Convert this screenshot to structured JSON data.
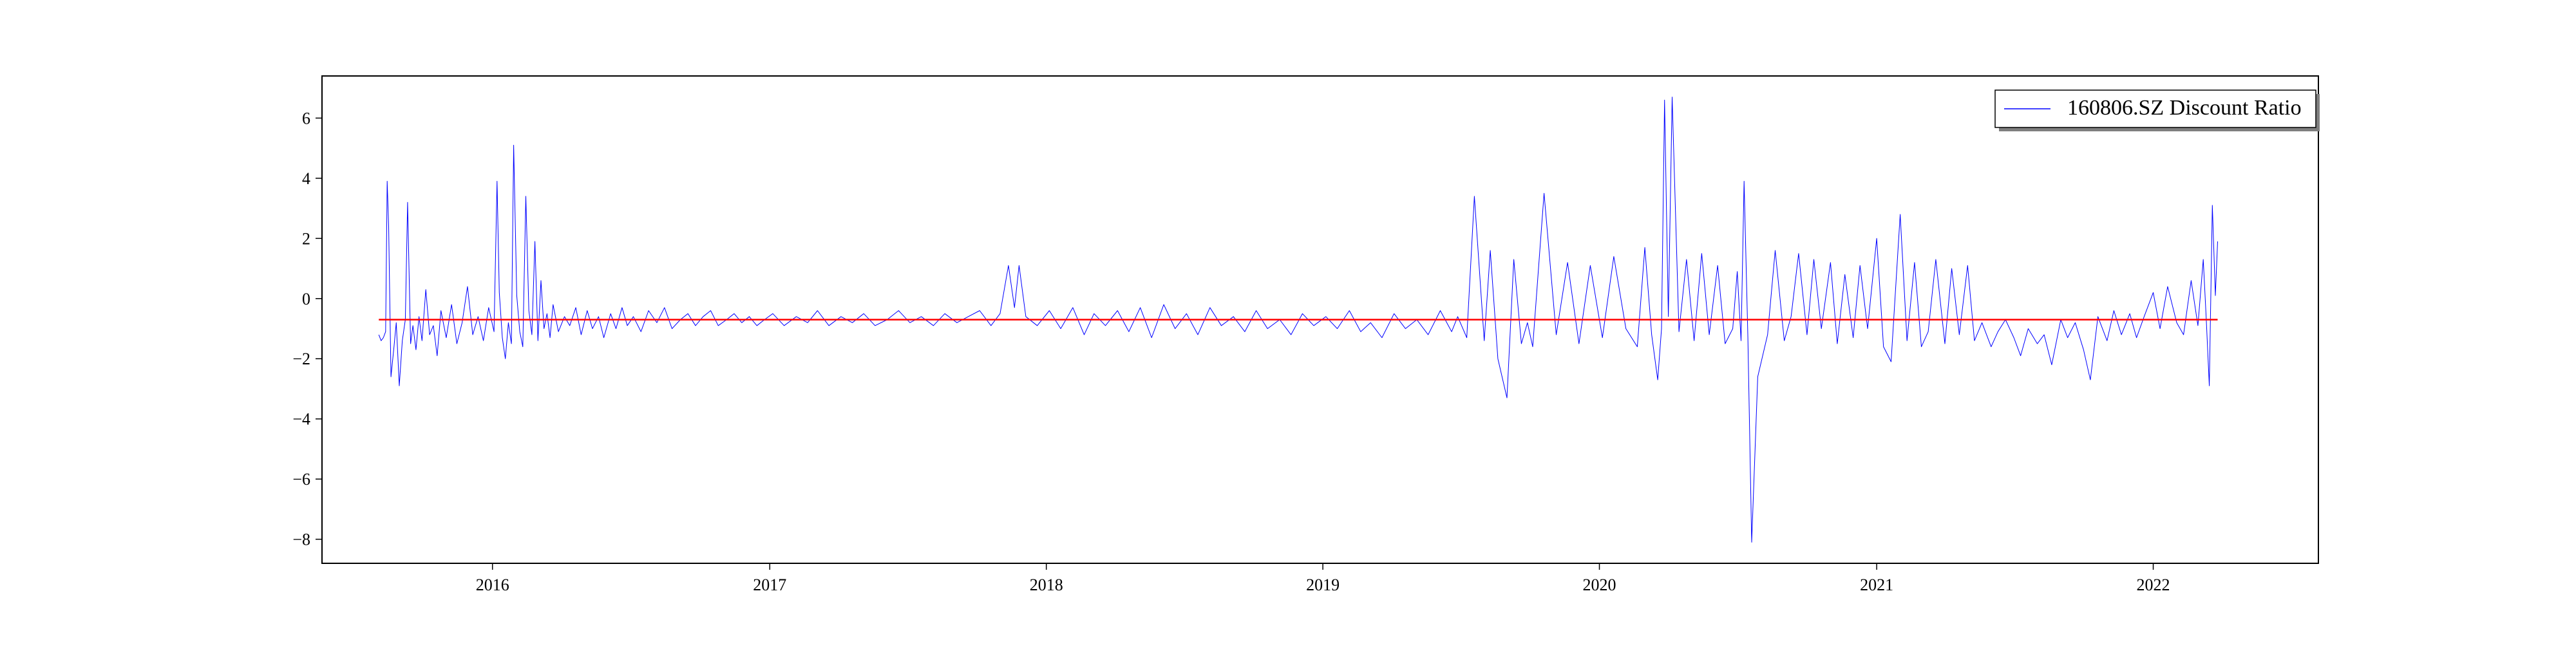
{
  "chart_data": {
    "type": "line",
    "title": "",
    "xlabel": "",
    "ylabel": "",
    "xlim": [
      "2015-05-21",
      "2022-08-07"
    ],
    "ylim": [
      -8.8,
      7.4
    ],
    "grid": false,
    "legend": {
      "location": "upper right",
      "entries": [
        "160806.SZ Discount Ratio"
      ]
    },
    "x_ticks": [
      {
        "value": "2016-01-01",
        "label": "2016"
      },
      {
        "value": "2017-01-01",
        "label": "2017"
      },
      {
        "value": "2018-01-01",
        "label": "2018"
      },
      {
        "value": "2019-01-01",
        "label": "2019"
      },
      {
        "value": "2020-01-01",
        "label": "2020"
      },
      {
        "value": "2021-01-01",
        "label": "2021"
      },
      {
        "value": "2022-01-01",
        "label": "2022"
      }
    ],
    "y_ticks": [
      {
        "value": 6,
        "label": "6"
      },
      {
        "value": 4,
        "label": "4"
      },
      {
        "value": 2,
        "label": "2"
      },
      {
        "value": 0,
        "label": "0"
      },
      {
        "value": -2,
        "label": "−2"
      },
      {
        "value": -4,
        "label": "−4"
      },
      {
        "value": -6,
        "label": "−6"
      },
      {
        "value": -8,
        "label": "−8"
      }
    ],
    "series": [
      {
        "name": "160806.SZ Discount Ratio",
        "color": "#0000ff",
        "x": [
          "2015-08-04",
          "2015-08-07",
          "2015-08-10",
          "2015-08-13",
          "2015-08-15",
          "2015-08-17",
          "2015-08-20",
          "2015-08-24",
          "2015-08-27",
          "2015-08-31",
          "2015-09-04",
          "2015-09-08",
          "2015-09-11",
          "2015-09-15",
          "2015-09-18",
          "2015-09-22",
          "2015-09-26",
          "2015-09-30",
          "2015-10-05",
          "2015-10-10",
          "2015-10-15",
          "2015-10-20",
          "2015-10-25",
          "2015-11-01",
          "2015-11-08",
          "2015-11-15",
          "2015-11-22",
          "2015-11-29",
          "2015-12-06",
          "2015-12-13",
          "2015-12-20",
          "2015-12-27",
          "2016-01-03",
          "2016-01-07",
          "2016-01-10",
          "2016-01-14",
          "2016-01-18",
          "2016-01-22",
          "2016-01-26",
          "2016-01-29",
          "2016-02-02",
          "2016-02-06",
          "2016-02-10",
          "2016-02-14",
          "2016-02-18",
          "2016-02-22",
          "2016-02-26",
          "2016-03-01",
          "2016-03-05",
          "2016-03-09",
          "2016-03-13",
          "2016-03-17",
          "2016-03-21",
          "2016-03-28",
          "2016-04-05",
          "2016-04-12",
          "2016-04-20",
          "2016-04-27",
          "2016-05-05",
          "2016-05-12",
          "2016-05-20",
          "2016-05-27",
          "2016-06-05",
          "2016-06-12",
          "2016-06-20",
          "2016-06-27",
          "2016-07-05",
          "2016-07-15",
          "2016-07-25",
          "2016-08-05",
          "2016-08-15",
          "2016-08-25",
          "2016-09-05",
          "2016-09-15",
          "2016-09-25",
          "2016-10-05",
          "2016-10-15",
          "2016-10-25",
          "2016-11-05",
          "2016-11-15",
          "2016-11-25",
          "2016-12-05",
          "2016-12-15",
          "2016-12-25",
          "2017-01-05",
          "2017-01-20",
          "2017-02-05",
          "2017-02-20",
          "2017-03-05",
          "2017-03-20",
          "2017-04-05",
          "2017-04-20",
          "2017-05-05",
          "2017-05-20",
          "2017-06-05",
          "2017-06-20",
          "2017-07-05",
          "2017-07-20",
          "2017-08-05",
          "2017-08-20",
          "2017-09-05",
          "2017-09-20",
          "2017-10-05",
          "2017-10-20",
          "2017-11-01",
          "2017-11-12",
          "2017-11-20",
          "2017-11-26",
          "2017-12-05",
          "2017-12-20",
          "2018-01-05",
          "2018-01-20",
          "2018-02-05",
          "2018-02-20",
          "2018-03-05",
          "2018-03-20",
          "2018-04-05",
          "2018-04-20",
          "2018-05-05",
          "2018-05-20",
          "2018-06-05",
          "2018-06-20",
          "2018-07-05",
          "2018-07-20",
          "2018-08-05",
          "2018-08-20",
          "2018-09-05",
          "2018-09-20",
          "2018-10-05",
          "2018-10-20",
          "2018-11-05",
          "2018-11-20",
          "2018-12-05",
          "2018-12-20",
          "2019-01-05",
          "2019-01-20",
          "2019-02-05",
          "2019-02-20",
          "2019-03-05",
          "2019-03-20",
          "2019-04-05",
          "2019-04-20",
          "2019-05-05",
          "2019-05-20",
          "2019-06-05",
          "2019-06-20",
          "2019-06-28",
          "2019-07-10",
          "2019-07-20",
          "2019-08-02",
          "2019-08-10",
          "2019-08-20",
          "2019-09-01",
          "2019-09-10",
          "2019-09-20",
          "2019-09-28",
          "2019-10-05",
          "2019-10-20",
          "2019-11-05",
          "2019-11-20",
          "2019-12-05",
          "2019-12-20",
          "2020-01-05",
          "2020-01-20",
          "2020-02-05",
          "2020-02-20",
          "2020-03-01",
          "2020-03-10",
          "2020-03-18",
          "2020-03-23",
          "2020-03-27",
          "2020-04-01",
          "2020-04-06",
          "2020-04-15",
          "2020-04-25",
          "2020-05-05",
          "2020-05-15",
          "2020-05-25",
          "2020-06-05",
          "2020-06-15",
          "2020-06-25",
          "2020-07-01",
          "2020-07-06",
          "2020-07-10",
          "2020-07-15",
          "2020-07-20",
          "2020-07-28",
          "2020-08-10",
          "2020-08-20",
          "2020-09-01",
          "2020-09-10",
          "2020-09-20",
          "2020-10-01",
          "2020-10-10",
          "2020-10-20",
          "2020-11-01",
          "2020-11-10",
          "2020-11-20",
          "2020-12-01",
          "2020-12-10",
          "2020-12-20",
          "2021-01-01",
          "2021-01-10",
          "2021-01-20",
          "2021-02-01",
          "2021-02-10",
          "2021-02-20",
          "2021-03-01",
          "2021-03-10",
          "2021-03-20",
          "2021-04-01",
          "2021-04-10",
          "2021-04-20",
          "2021-05-01",
          "2021-05-10",
          "2021-05-20",
          "2021-06-01",
          "2021-06-10",
          "2021-06-20",
          "2021-07-01",
          "2021-07-10",
          "2021-07-20",
          "2021-08-01",
          "2021-08-10",
          "2021-08-20",
          "2021-09-01",
          "2021-09-10",
          "2021-09-20",
          "2021-10-01",
          "2021-10-10",
          "2021-10-20",
          "2021-11-01",
          "2021-11-10",
          "2021-11-20",
          "2021-12-01",
          "2021-12-10",
          "2021-12-20",
          "2022-01-01",
          "2022-01-10",
          "2022-01-20",
          "2022-02-01",
          "2022-02-10",
          "2022-02-20",
          "2022-03-01",
          "2022-03-08",
          "2022-03-12",
          "2022-03-16",
          "2022-03-20",
          "2022-03-24",
          "2022-03-27"
        ],
        "values": [
          -1.2,
          -1.4,
          -1.3,
          -1.1,
          3.9,
          2.4,
          -2.6,
          -1.6,
          -0.8,
          -2.9,
          -1.4,
          -0.7,
          3.2,
          -1.5,
          -0.9,
          -1.7,
          -0.6,
          -1.4,
          0.3,
          -1.2,
          -0.9,
          -1.9,
          -0.4,
          -1.3,
          -0.2,
          -1.5,
          -0.8,
          0.4,
          -1.2,
          -0.6,
          -1.4,
          -0.3,
          -1.1,
          3.9,
          0.2,
          -1.3,
          -2.0,
          -0.8,
          -1.5,
          5.1,
          0.1,
          -1.1,
          -1.6,
          3.4,
          -0.4,
          -1.2,
          1.9,
          -1.4,
          0.6,
          -1.0,
          -0.5,
          -1.3,
          -0.2,
          -1.1,
          -0.6,
          -0.9,
          -0.3,
          -1.2,
          -0.4,
          -1.0,
          -0.6,
          -1.3,
          -0.5,
          -1.0,
          -0.3,
          -0.9,
          -0.6,
          -1.1,
          -0.4,
          -0.8,
          -0.3,
          -1.0,
          -0.7,
          -0.5,
          -0.9,
          -0.6,
          -0.4,
          -0.9,
          -0.7,
          -0.5,
          -0.8,
          -0.6,
          -0.9,
          -0.7,
          -0.5,
          -0.9,
          -0.6,
          -0.8,
          -0.4,
          -0.9,
          -0.6,
          -0.8,
          -0.5,
          -0.9,
          -0.7,
          -0.4,
          -0.8,
          -0.6,
          -0.9,
          -0.5,
          -0.8,
          -0.6,
          -0.4,
          -0.9,
          -0.5,
          1.1,
          -0.3,
          1.1,
          -0.6,
          -0.9,
          -0.4,
          -1.0,
          -0.3,
          -1.2,
          -0.5,
          -0.9,
          -0.4,
          -1.1,
          -0.3,
          -1.3,
          -0.2,
          -1.0,
          -0.5,
          -1.2,
          -0.3,
          -0.9,
          -0.6,
          -1.1,
          -0.4,
          -1.0,
          -0.7,
          -1.2,
          -0.5,
          -0.9,
          -0.6,
          -1.0,
          -0.4,
          -1.1,
          -0.8,
          -1.3,
          -0.5,
          -1.0,
          -0.7,
          -1.2,
          -0.4,
          -1.1,
          -0.6,
          -1.3,
          3.4,
          -1.4,
          1.6,
          -2.0,
          -3.3,
          1.3,
          -1.5,
          -0.8,
          -1.6,
          3.5,
          -1.2,
          1.2,
          -1.5,
          1.1,
          -1.3,
          1.4,
          -1.0,
          -1.6,
          1.7,
          -1.2,
          -2.7,
          -1.0,
          6.6,
          -0.6,
          6.7,
          -1.1,
          1.3,
          -1.4,
          1.5,
          -1.2,
          1.1,
          -1.5,
          -1.0,
          0.9,
          -1.4,
          3.9,
          -1.3,
          -8.1,
          -2.6,
          -1.2,
          1.6,
          -1.4,
          -0.6,
          1.5,
          -1.2,
          1.3,
          -1.0,
          1.2,
          -1.5,
          0.8,
          -1.3,
          1.1,
          -1.0,
          2.0,
          -1.6,
          -2.1,
          2.8,
          -1.4,
          1.2,
          -1.6,
          -1.1,
          1.3,
          -1.5,
          1.0,
          -1.2,
          1.1,
          -1.4,
          -0.8,
          -1.6,
          -1.1,
          -0.7,
          -1.3,
          -1.9,
          -1.0,
          -1.5,
          -1.2,
          -2.2,
          -0.7,
          -1.3,
          -0.8,
          -1.7,
          -2.7,
          -0.6,
          -1.4,
          -0.4,
          -1.2,
          -0.5,
          -1.3,
          -0.6,
          0.2,
          -1.0,
          0.4,
          -0.8,
          -1.2,
          0.6,
          -0.9,
          1.3,
          -0.7,
          -2.9,
          3.1,
          0.1,
          1.9
        ],
        "line_width": 1
      }
    ],
    "reference_lines": [
      {
        "type": "horizontal",
        "value": -0.7,
        "color": "#ff0000",
        "x_range": [
          "2015-08-04",
          "2022-03-27"
        ]
      }
    ]
  }
}
